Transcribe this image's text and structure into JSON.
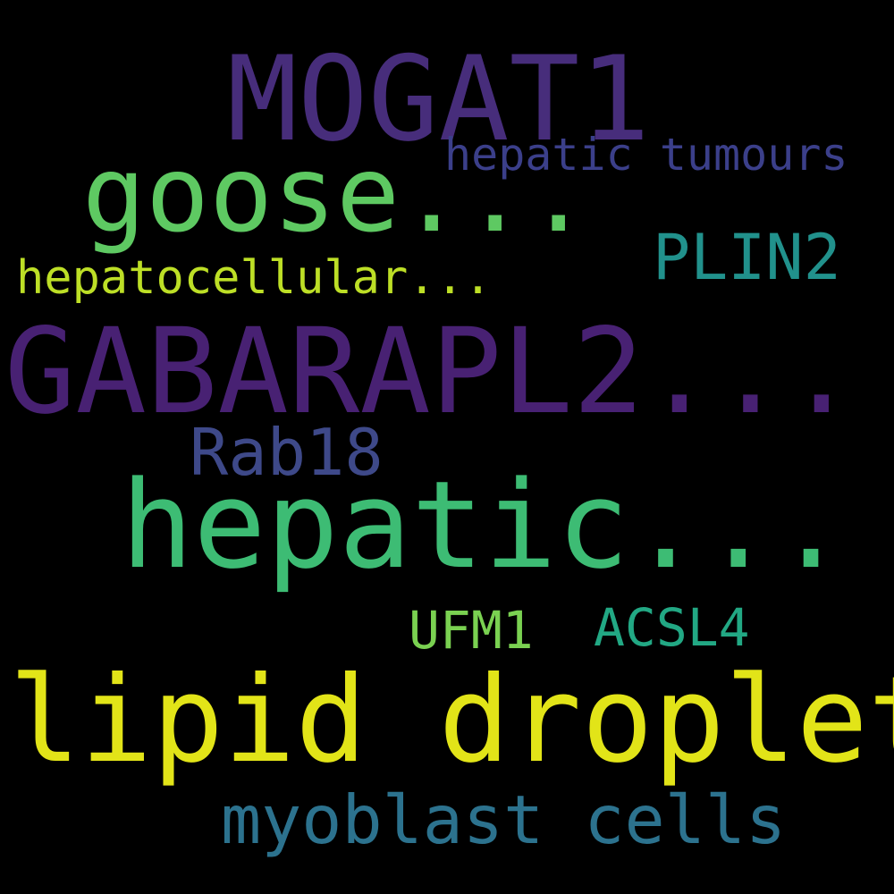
{
  "word_cloud": {
    "background": "#000000",
    "words": [
      {
        "key": "mogat1",
        "text": "MOGAT1",
        "color": "#472d7b"
      },
      {
        "key": "goose",
        "text": "goose...",
        "color": "#5ec962"
      },
      {
        "key": "hepatic_tumours",
        "text": "hepatic tumours",
        "color": "#3b3f8a"
      },
      {
        "key": "plin2",
        "text": "PLIN2",
        "color": "#21918c"
      },
      {
        "key": "hepatocellular",
        "text": "hepatocellular...",
        "color": "#bddf26"
      },
      {
        "key": "gabarapl2",
        "text": "GABARAPL2...",
        "color": "#482173"
      },
      {
        "key": "rab18",
        "text": "Rab18",
        "color": "#3e4989"
      },
      {
        "key": "hepatic",
        "text": "hepatic...",
        "color": "#3dbc74"
      },
      {
        "key": "ufm1",
        "text": "UFM1",
        "color": "#7ad151"
      },
      {
        "key": "acsl4",
        "text": "ACSL4",
        "color": "#22a884"
      },
      {
        "key": "lipid_droplet",
        "text": "lipid droplet",
        "color": "#e2e418"
      },
      {
        "key": "myoblast_cells",
        "text": "myoblast cells",
        "color": "#2c728e"
      }
    ]
  }
}
